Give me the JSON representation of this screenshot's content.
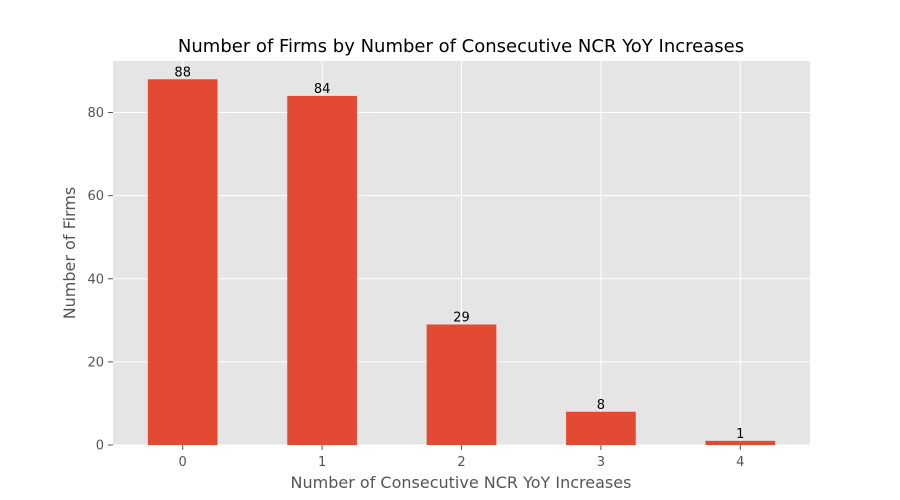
{
  "chart_data": {
    "type": "bar",
    "title": "Number of Firms by Number of Consecutive NCR YoY Increases",
    "xlabel": "Number of Consecutive NCR YoY Increases",
    "ylabel": "Number of Firms",
    "categories": [
      "0",
      "1",
      "2",
      "3",
      "4"
    ],
    "values": [
      88,
      84,
      29,
      8,
      1
    ],
    "data_labels": [
      "88",
      "84",
      "29",
      "8",
      "1"
    ],
    "yticks": [
      0,
      20,
      40,
      60,
      80
    ],
    "ytick_labels": [
      "0",
      "20",
      "40",
      "60",
      "80"
    ],
    "ylim": [
      0,
      92.4
    ],
    "grid": true,
    "colors": {
      "bar": "#E24A33",
      "plot_background": "#E5E5E5",
      "grid": "#FFFFFF"
    }
  }
}
